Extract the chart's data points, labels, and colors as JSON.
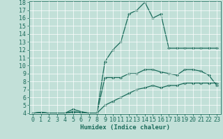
{
  "xlabel": "Humidex (Indice chaleur)",
  "bg_color": "#c2e0d8",
  "line_color": "#1a6b5a",
  "grid_color": "#ffffff",
  "xlim": [
    -0.5,
    23.5
  ],
  "ylim": [
    4,
    18
  ],
  "yticks": [
    4,
    5,
    6,
    7,
    8,
    9,
    10,
    11,
    12,
    13,
    14,
    15,
    16,
    17,
    18
  ],
  "xticks": [
    0,
    1,
    2,
    3,
    4,
    5,
    6,
    7,
    8,
    9,
    10,
    11,
    12,
    13,
    14,
    15,
    16,
    17,
    18,
    19,
    20,
    21,
    22,
    23
  ],
  "line1_x": [
    0,
    1,
    2,
    3,
    4,
    5,
    6,
    7,
    8,
    9,
    10,
    11,
    12,
    13,
    14,
    15,
    16,
    17,
    18,
    19,
    20,
    21,
    22,
    23
  ],
  "line1_y": [
    4.0,
    4.1,
    4.0,
    4.0,
    4.0,
    4.1,
    4.1,
    4.0,
    4.0,
    10.5,
    12.0,
    13.0,
    16.5,
    17.0,
    18.0,
    16.0,
    16.5,
    12.2,
    12.2,
    12.2,
    12.2,
    12.2,
    12.2,
    12.2
  ],
  "line2_x": [
    0,
    1,
    2,
    3,
    4,
    5,
    6,
    7,
    8,
    9,
    10,
    11,
    12,
    13,
    14,
    15,
    16,
    17,
    18,
    19,
    20,
    21,
    22,
    23
  ],
  "line2_y": [
    4.0,
    4.1,
    4.0,
    4.0,
    4.0,
    4.5,
    4.2,
    4.0,
    4.0,
    8.5,
    8.5,
    8.5,
    9.0,
    9.0,
    9.5,
    9.5,
    9.2,
    9.0,
    8.8,
    9.5,
    9.5,
    9.3,
    8.8,
    7.5
  ],
  "line3_x": [
    0,
    1,
    2,
    3,
    4,
    5,
    6,
    7,
    8,
    9,
    10,
    11,
    12,
    13,
    14,
    15,
    16,
    17,
    18,
    19,
    20,
    21,
    22,
    23
  ],
  "line3_y": [
    4.0,
    4.1,
    4.0,
    4.0,
    4.0,
    4.2,
    4.1,
    4.0,
    4.0,
    5.0,
    5.5,
    6.0,
    6.5,
    7.0,
    7.2,
    7.5,
    7.2,
    7.5,
    7.5,
    7.8,
    7.8,
    7.8,
    7.8,
    7.8
  ],
  "marker": "D",
  "markersize": 2.0,
  "linewidth": 0.9,
  "font_size_ticks": 6,
  "font_size_xlabel": 6.5
}
